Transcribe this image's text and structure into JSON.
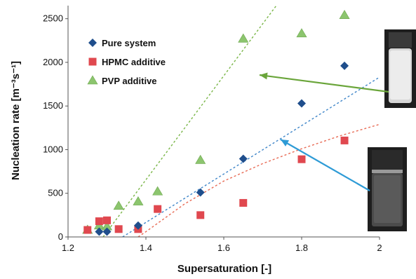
{
  "chart_data": {
    "type": "scatter",
    "xlabel": "Supersaturation [-]",
    "ylabel": "Nucleation rate [m⁻³s⁻¹]",
    "xlim": [
      1.2,
      2.0
    ],
    "ylim": [
      0,
      2650
    ],
    "x_ticks": [
      "1.2",
      "1.4",
      "1.6",
      "1.8",
      "2"
    ],
    "y_ticks": [
      "0",
      "500",
      "1000",
      "1500",
      "2000",
      "2500"
    ],
    "grid": false,
    "legend_position": "top-left",
    "series": [
      {
        "name": "Pure system",
        "marker": "diamond",
        "color": "#1f4e8c",
        "points": [
          [
            1.28,
            60
          ],
          [
            1.3,
            60
          ],
          [
            1.38,
            130
          ],
          [
            1.54,
            510
          ],
          [
            1.65,
            895
          ],
          [
            1.8,
            1530
          ],
          [
            1.91,
            1960
          ]
        ],
        "trend": {
          "color": "#3f86c9",
          "points": [
            [
              1.34,
              0
            ],
            [
              2.0,
              1830
            ]
          ]
        }
      },
      {
        "name": "HPMC additive",
        "marker": "square",
        "color": "#e0484f",
        "points": [
          [
            1.25,
            80
          ],
          [
            1.28,
            180
          ],
          [
            1.3,
            190
          ],
          [
            1.33,
            90
          ],
          [
            1.38,
            90
          ],
          [
            1.43,
            320
          ],
          [
            1.54,
            250
          ],
          [
            1.65,
            390
          ],
          [
            1.8,
            890
          ],
          [
            1.91,
            1105
          ]
        ],
        "trend": {
          "color": "#e86b55",
          "points": [
            [
              1.38,
              0
            ],
            [
              1.4,
              60
            ],
            [
              1.45,
              220
            ],
            [
              1.5,
              380
            ],
            [
              1.6,
              640
            ],
            [
              1.7,
              840
            ],
            [
              1.8,
              1010
            ],
            [
              1.9,
              1160
            ],
            [
              2.0,
              1290
            ]
          ]
        }
      },
      {
        "name": "PVP additive",
        "marker": "triangle",
        "color": "#8cc56e",
        "points": [
          [
            1.25,
            80
          ],
          [
            1.28,
            130
          ],
          [
            1.3,
            120
          ],
          [
            1.33,
            355
          ],
          [
            1.38,
            405
          ],
          [
            1.43,
            520
          ],
          [
            1.54,
            880
          ],
          [
            1.65,
            2270
          ],
          [
            1.8,
            2330
          ],
          [
            1.91,
            2540
          ]
        ],
        "trend": {
          "color": "#7ab648",
          "points": [
            [
              1.29,
              0
            ],
            [
              1.735,
              2650
            ]
          ]
        }
      }
    ],
    "insets": [
      {
        "name": "vial-pvp",
        "description": "bright vial photo",
        "arrow_color": "#6aa53a"
      },
      {
        "name": "vial-pure",
        "description": "dark vial photo",
        "arrow_color": "#2e9bd6"
      }
    ]
  }
}
